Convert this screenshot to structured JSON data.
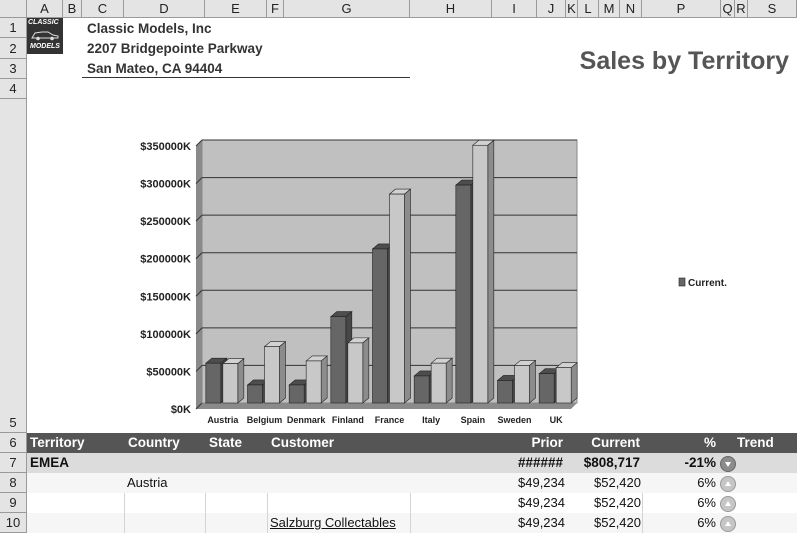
{
  "columns": [
    "A",
    "B",
    "C",
    "D",
    "E",
    "F",
    "G",
    "H",
    "I",
    "J",
    "K",
    "L",
    "M",
    "N",
    "P",
    "Q",
    "R",
    "S"
  ],
  "rows": [
    "1",
    "2",
    "3",
    "4",
    "5",
    "6",
    "7",
    "8",
    "9",
    "10"
  ],
  "logo": {
    "line1": "CLASSIC",
    "line2": "MODELS"
  },
  "company": {
    "name": "Classic Models, Inc",
    "street": "2207 Bridgepointe Parkway",
    "city": "San Mateo, CA 94404"
  },
  "report_title": "Sales by Territory",
  "chart_data": {
    "type": "bar",
    "categories": [
      "Austria",
      "Belgium",
      "Denmark",
      "Finland",
      "France",
      "Italy",
      "Spain",
      "Sweden",
      "UK"
    ],
    "series": [
      {
        "values": [
          53000,
          24000,
          24000,
          115000,
          205000,
          36000,
          290000,
          30000,
          39000
        ],
        "color": "#666666"
      },
      {
        "values": [
          52420,
          75000,
          56000,
          80000,
          278000,
          53000,
          343000,
          50000,
          47000
        ],
        "color": "#c8c8c8"
      }
    ],
    "yticks": [
      "$0K",
      "$50000K",
      "$100000K",
      "$150000K",
      "$200000K",
      "$250000K",
      "$300000K",
      "$350000K"
    ],
    "ylim": [
      0,
      350000
    ],
    "legend": {
      "label": "Current.",
      "position": "right"
    },
    "plot_bg": "#c0c0c0",
    "grid": true
  },
  "table": {
    "headers": {
      "territory": "Territory",
      "country": "Country",
      "state": "State",
      "customer": "Customer",
      "prior": "Prior",
      "current": "Current",
      "pct": "%",
      "trend": "Trend"
    },
    "group": {
      "territory": "EMEA",
      "prior": "######",
      "current": "$808,717",
      "pct": "-21%",
      "trend": "down"
    },
    "rows": [
      {
        "country": "Austria",
        "customer": "",
        "prior": "$49,234",
        "current": "$52,420",
        "pct": "6%",
        "trend": "up"
      },
      {
        "country": "",
        "customer": "",
        "prior": "$49,234",
        "current": "$52,420",
        "pct": "6%",
        "trend": "up"
      },
      {
        "country": "",
        "customer": "Salzburg Collectables",
        "prior": "$49,234",
        "current": "$52,420",
        "pct": "6%",
        "trend": "up"
      }
    ]
  },
  "colors": {
    "header_band": "#555555",
    "group_band": "#dcdcdc",
    "title": "#555555"
  }
}
